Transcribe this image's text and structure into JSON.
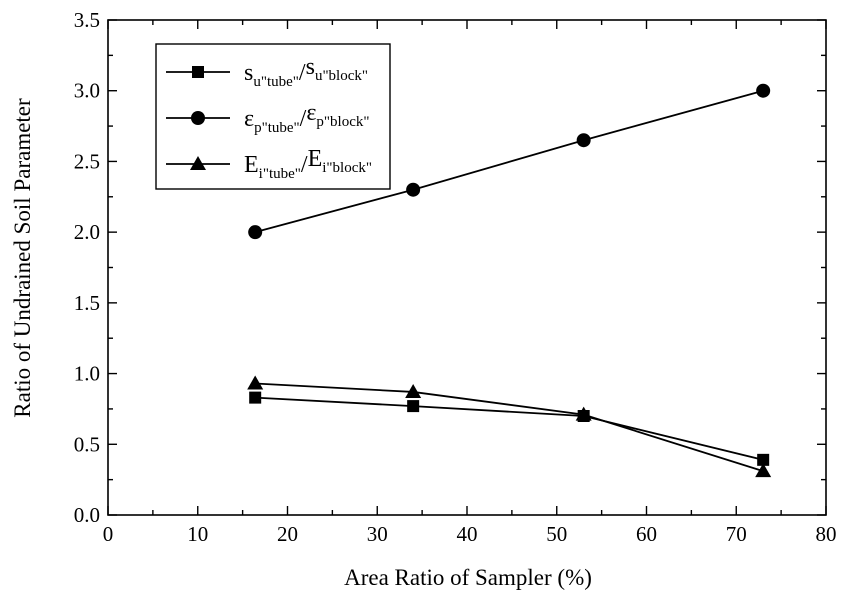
{
  "chart_data": {
    "type": "line",
    "title": "",
    "xlabel": "Area Ratio of Sampler (%)",
    "ylabel": "Ratio of Undrained Soil Parameter",
    "xlim": [
      0,
      80
    ],
    "ylim": [
      0.0,
      3.5
    ],
    "x_ticks": [
      "0",
      "10",
      "20",
      "30",
      "40",
      "50",
      "60",
      "70",
      "80"
    ],
    "y_ticks": [
      "0.0",
      "0.5",
      "1.0",
      "1.5",
      "2.0",
      "2.5",
      "3.0",
      "3.5"
    ],
    "grid": false,
    "legend_position": "top-left",
    "x": [
      16.4,
      34,
      53,
      73
    ],
    "series": [
      {
        "marker": "square",
        "values": [
          0.83,
          0.77,
          0.7,
          0.39
        ],
        "legend": {
          "main1": "s",
          "sub1": "u\"tube\"",
          "slash": "/",
          "main2": "s",
          "sub2": "u\"block\""
        }
      },
      {
        "marker": "circle",
        "values": [
          2.0,
          2.3,
          2.65,
          3.0
        ],
        "legend": {
          "main1": "ε",
          "sub1": "p\"tube\"",
          "slash": "/",
          "main2": "ε",
          "sub2": "p\"block\""
        }
      },
      {
        "marker": "triangle",
        "values": [
          0.93,
          0.87,
          0.71,
          0.31
        ],
        "legend": {
          "main1": "E",
          "sub1": "i\"tube\"",
          "slash": "/",
          "main2": "E",
          "sub2": "i\"block\""
        }
      }
    ]
  }
}
